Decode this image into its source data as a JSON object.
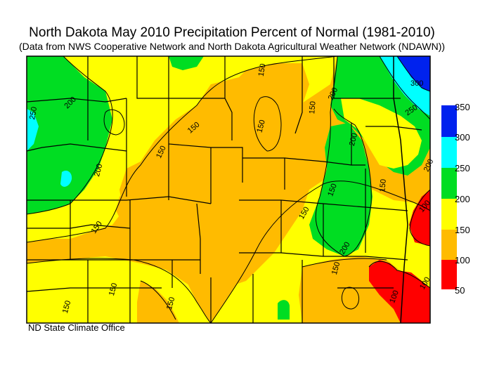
{
  "title": "North Dakota May 2010 Precipitation Percent of Normal (1981-2010)",
  "subtitle": "(Data from NWS Cooperative Network and North Dakota Agricultural Weather Network (NDAWN))",
  "credit": "ND State Climate Office",
  "legend": {
    "bins": [
      {
        "range": [
          300,
          350
        ],
        "color": "#0022ee"
      },
      {
        "range": [
          250,
          300
        ],
        "color": "#00ffff"
      },
      {
        "range": [
          200,
          250
        ],
        "color": "#00dd22"
      },
      {
        "range": [
          150,
          200
        ],
        "color": "#ffff00"
      },
      {
        "range": [
          100,
          150
        ],
        "color": "#ffbb00"
      },
      {
        "range": [
          50,
          100
        ],
        "color": "#ff0000"
      }
    ],
    "labels": [
      "350",
      "300",
      "250",
      "200",
      "150",
      "100",
      "50"
    ]
  },
  "contour_labels": [
    "250",
    "200",
    "200",
    "150",
    "150",
    "150",
    "150",
    "150",
    "200",
    "200",
    "250",
    "300",
    "200",
    "150",
    "100",
    "150",
    "200",
    "150",
    "150",
    "150",
    "150",
    "150",
    "100",
    "100",
    "150"
  ]
}
